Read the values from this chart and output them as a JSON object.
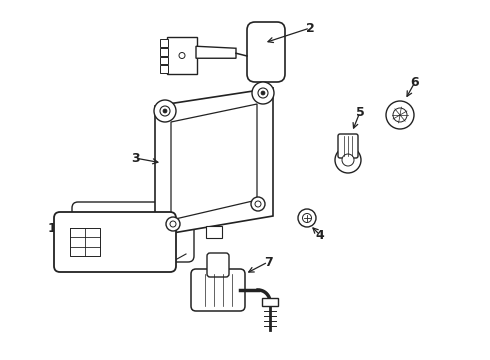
{
  "bg_color": "#ffffff",
  "line_color": "#222222",
  "text_color": "#000000",
  "fig_width": 4.9,
  "fig_height": 3.6,
  "dpi": 100
}
